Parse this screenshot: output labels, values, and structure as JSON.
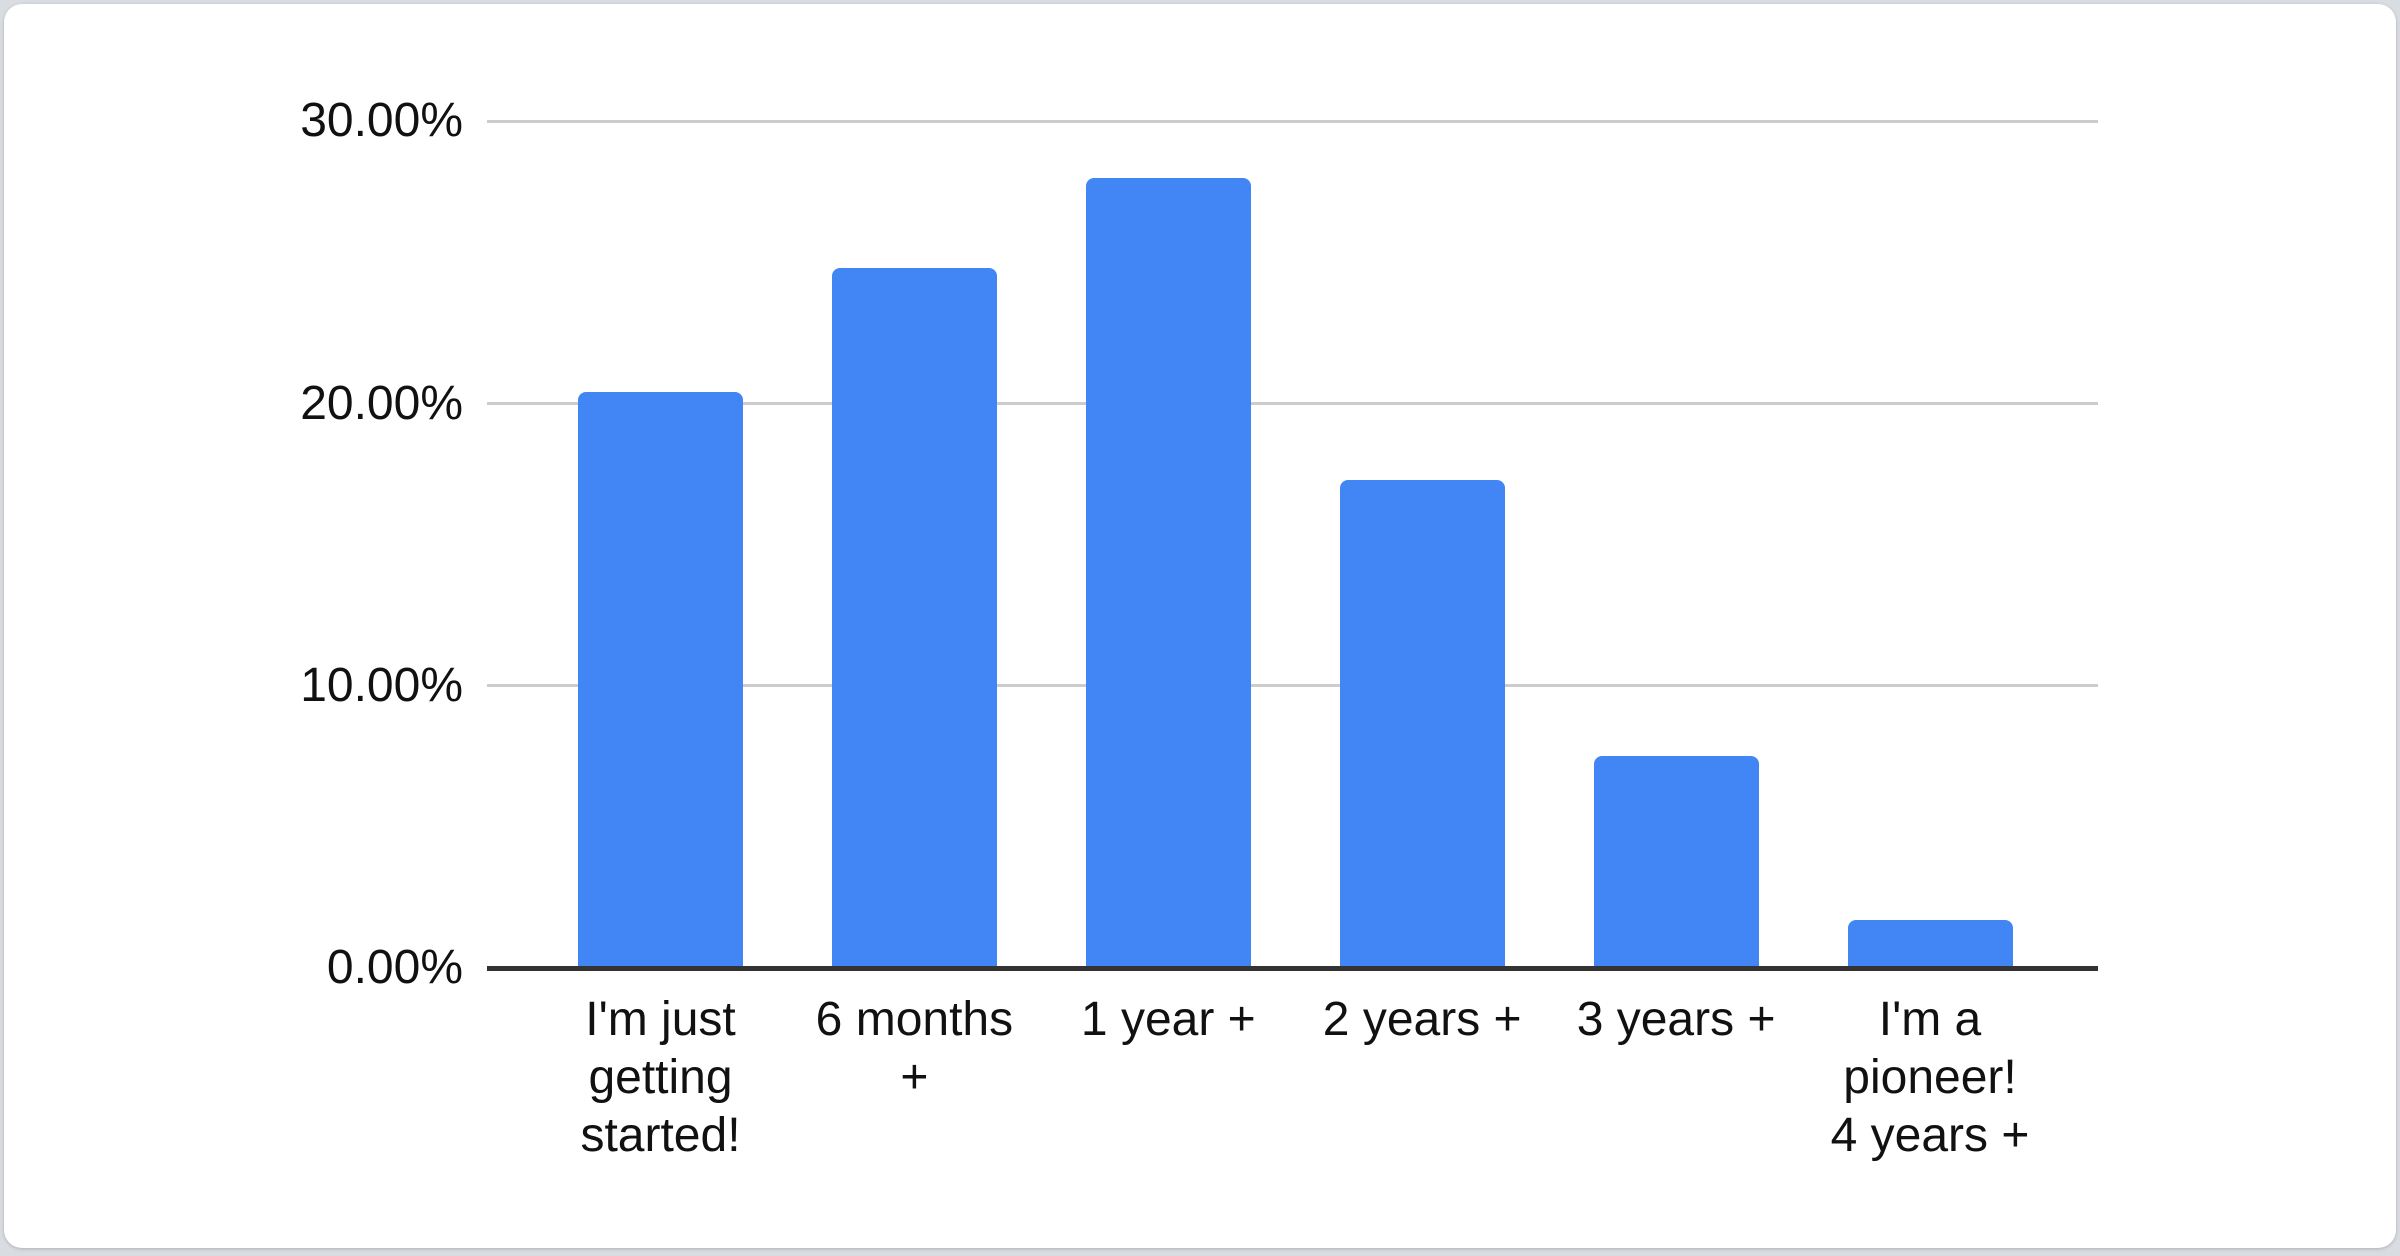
{
  "page": {
    "background_color": "#d9dce0",
    "card_background": "#ffffff"
  },
  "chart_data": {
    "type": "bar",
    "title": "",
    "xlabel": "",
    "ylabel": "",
    "categories": [
      "I'm just getting started!",
      "6 months +",
      "1 year +",
      "2 years +",
      "3 years +",
      "I'm a pioneer! 4 years +"
    ],
    "values": [
      20.4,
      24.8,
      28.0,
      17.3,
      7.5,
      1.7
    ],
    "value_unit": "percent",
    "ylim": [
      0,
      30
    ],
    "y_ticks": [
      {
        "value": 30,
        "label": "30.00%"
      },
      {
        "value": 20,
        "label": "20.00%"
      },
      {
        "value": 10,
        "label": "10.00%"
      },
      {
        "value": 0,
        "label": "0.00%"
      }
    ],
    "grid": true,
    "legend": "none",
    "colors": {
      "bar": "#4285f4",
      "gridline": "#cccccc",
      "axis_baseline": "#333333",
      "axis_label_text": "#111111"
    }
  }
}
